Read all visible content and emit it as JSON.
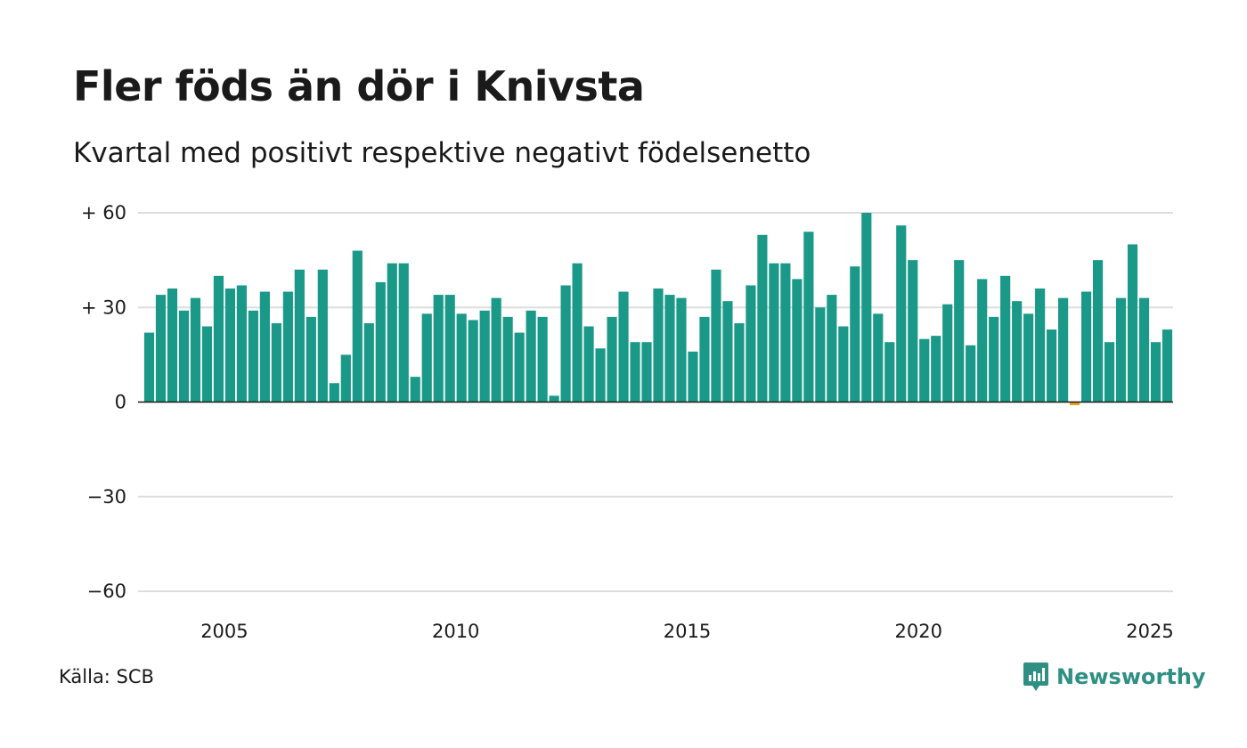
{
  "title": "Fler föds än dör i Knivsta",
  "subtitle": "Kvartal med positivt respektive negativt födelsenetto",
  "source": "Källa: SCB",
  "brand": "Newsworthy",
  "colors": {
    "positive": "#1a9988",
    "negative": "#e8a020",
    "grid": "#dddddd",
    "zero": "#1a1a1a",
    "brand": "#2f8f83"
  },
  "chart_data": {
    "type": "bar",
    "title": "Fler föds än dör i Knivsta",
    "subtitle": "Kvartal med positivt respektive negativt födelsenetto",
    "xlabel": "",
    "ylabel": "",
    "ylim": [
      -60,
      60
    ],
    "x_start": "2003 Q2",
    "y_ticks": [
      {
        "value": 60,
        "label": "+ 60"
      },
      {
        "value": 30,
        "label": "+ 30"
      },
      {
        "value": 0,
        "label": "0"
      },
      {
        "value": -30,
        "label": "−30"
      },
      {
        "value": -60,
        "label": "−60"
      }
    ],
    "x_ticks": [
      {
        "label": "2005",
        "index": 7
      },
      {
        "label": "2010",
        "index": 27
      },
      {
        "label": "2015",
        "index": 47
      },
      {
        "label": "2020",
        "index": 67
      },
      {
        "label": "2025",
        "index": 87
      }
    ],
    "values": [
      22,
      34,
      36,
      29,
      33,
      24,
      40,
      36,
      37,
      29,
      35,
      25,
      35,
      42,
      27,
      42,
      6,
      15,
      48,
      25,
      38,
      44,
      44,
      8,
      28,
      34,
      34,
      28,
      26,
      29,
      33,
      27,
      22,
      29,
      27,
      2,
      37,
      44,
      24,
      17,
      27,
      35,
      19,
      19,
      36,
      34,
      33,
      16,
      27,
      42,
      32,
      25,
      37,
      53,
      44,
      44,
      39,
      54,
      30,
      34,
      24,
      43,
      60,
      28,
      19,
      56,
      45,
      20,
      21,
      31,
      45,
      18,
      39,
      27,
      40,
      32,
      28,
      36,
      23,
      33,
      -1,
      35,
      45,
      19,
      33,
      50,
      33,
      19,
      23
    ],
    "grid": true,
    "legend": "none"
  }
}
